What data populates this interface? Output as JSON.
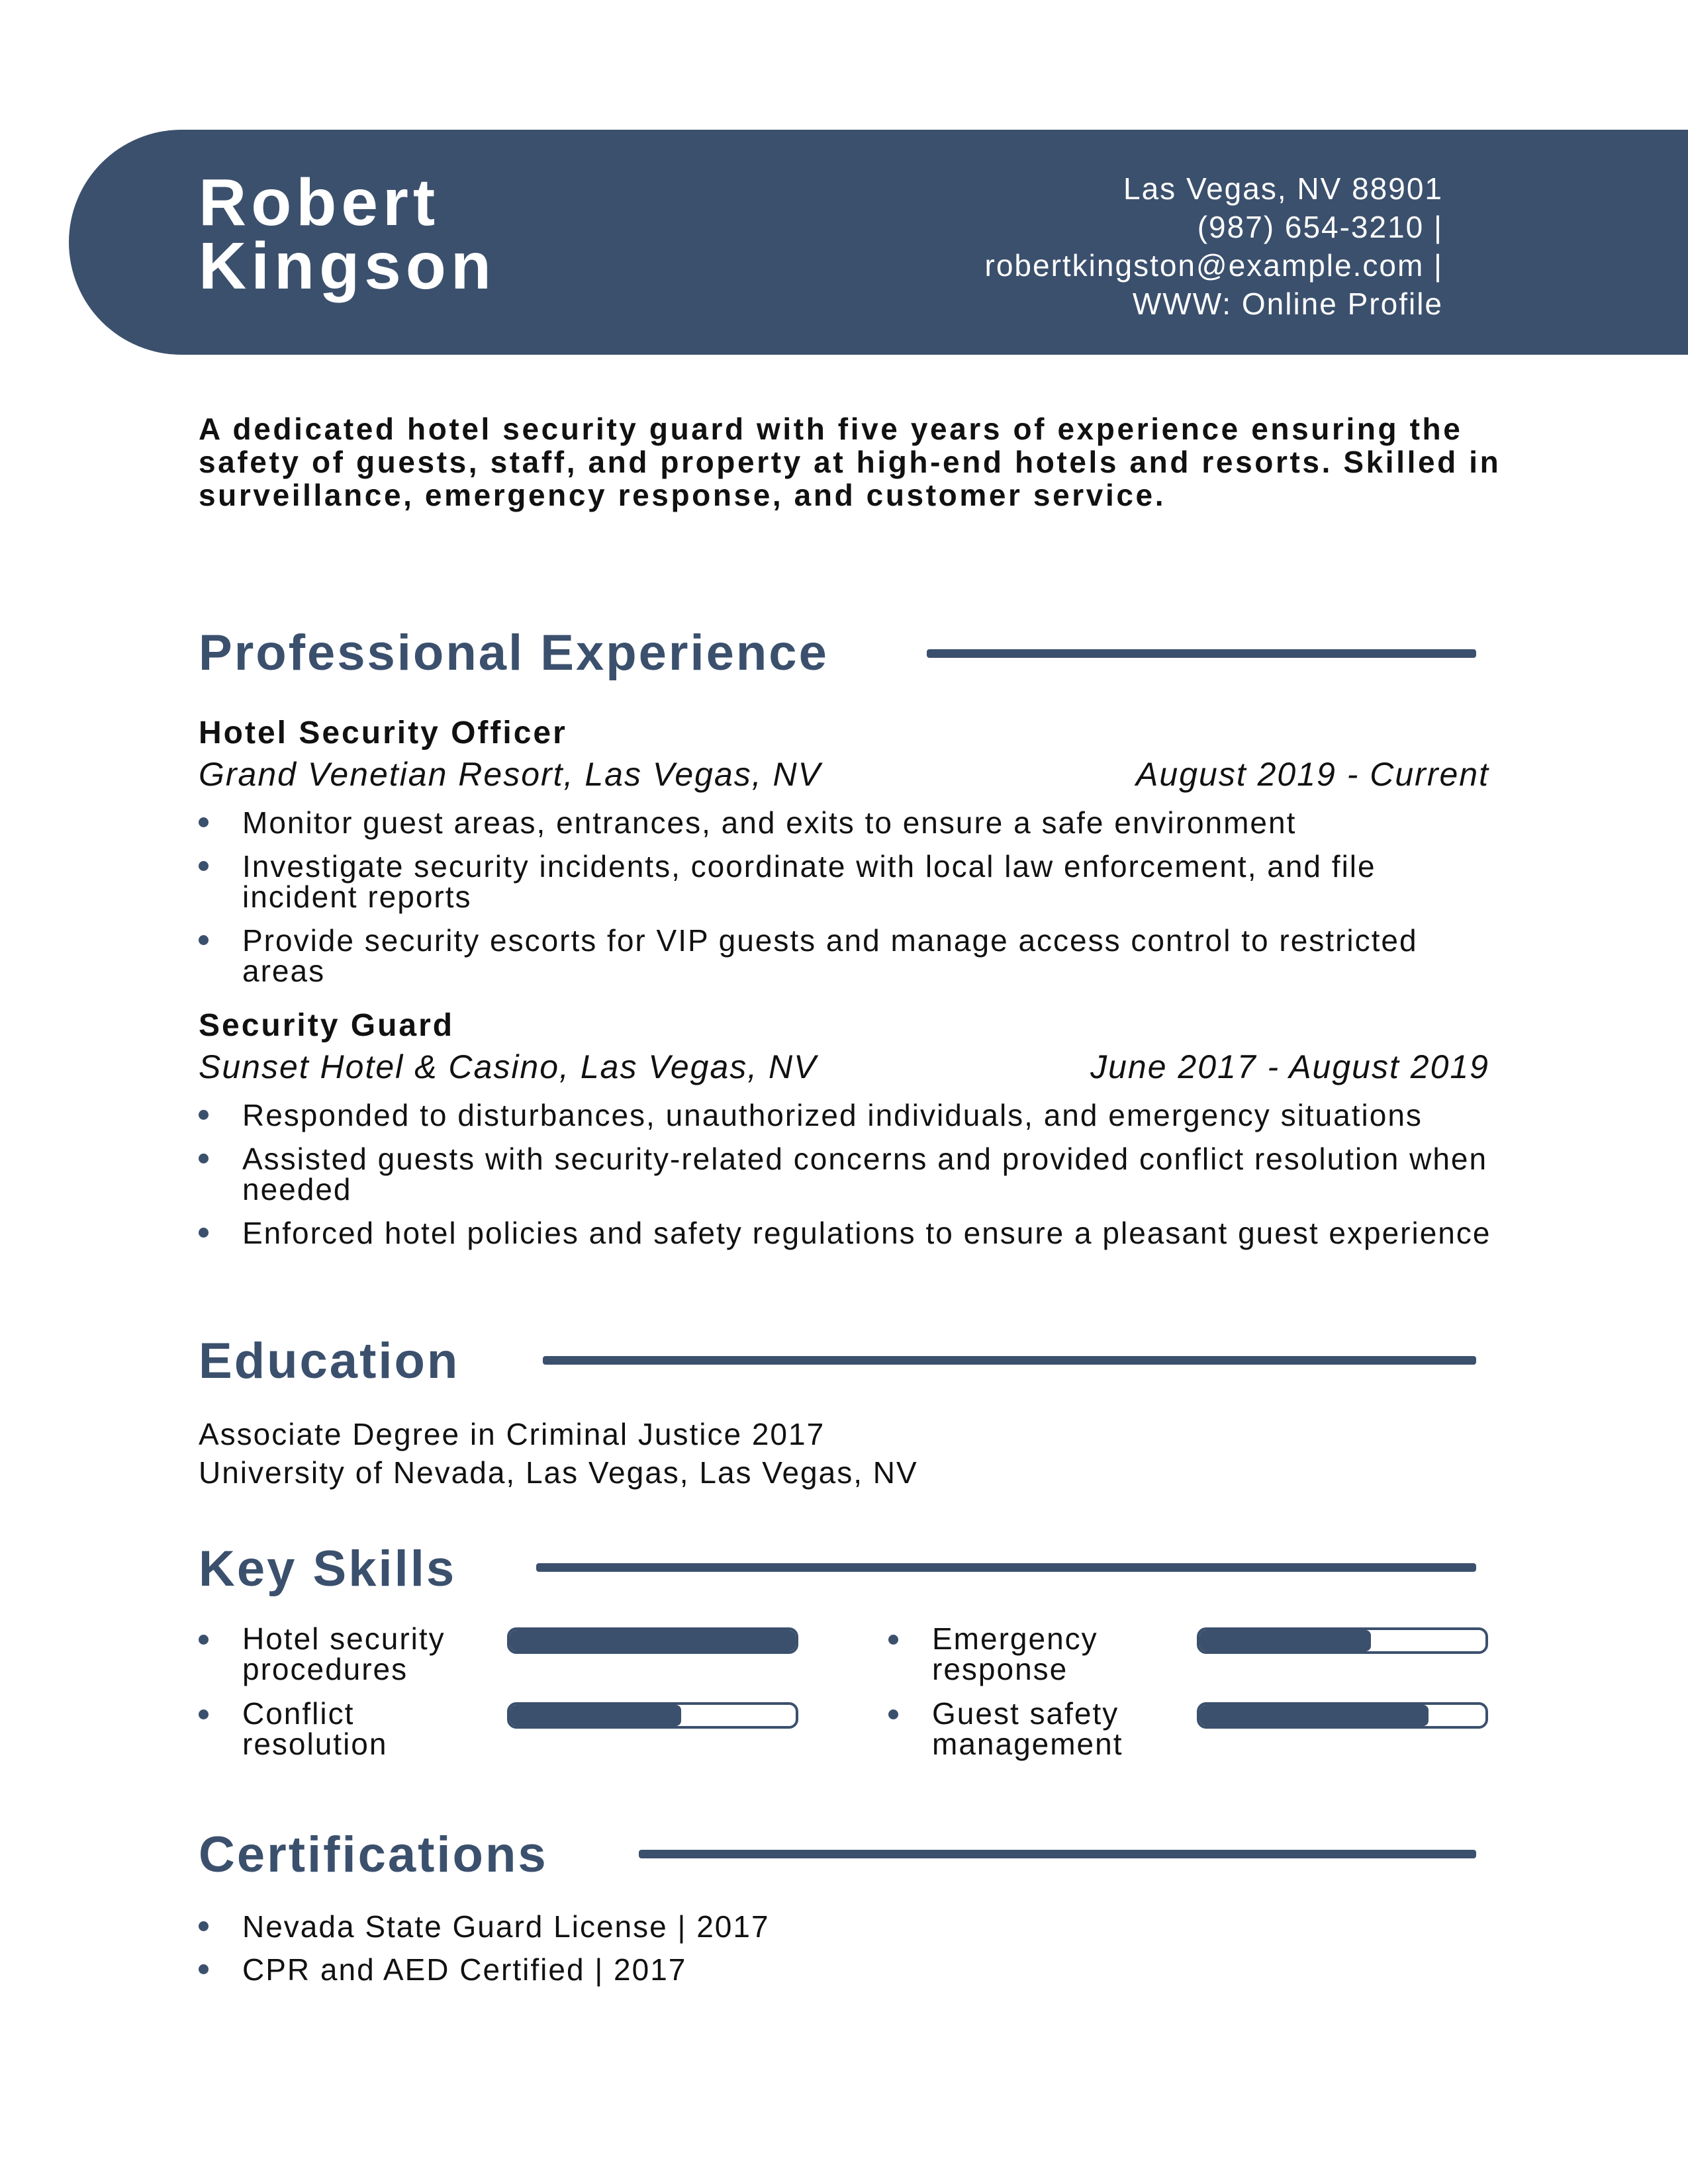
{
  "header": {
    "first_name": "Robert",
    "last_name": "Kingson",
    "contact": {
      "address": "Las Vegas, NV 88901",
      "phone": "(987) 654-3210 |",
      "email": "robertkingston@example.com |",
      "website": "WWW: Online Profile"
    }
  },
  "summary": "A dedicated hotel security guard with five years of experience ensuring the safety of guests, staff, and property at high-end hotels and resorts. Skilled in surveillance, emergency response, and customer service.",
  "experience": {
    "title": "Professional Experience",
    "jobs": [
      {
        "title": "Hotel Security Officer",
        "company": "Grand Venetian Resort, Las Vegas, NV",
        "dates": "August 2019 - Current",
        "bullets": [
          "Monitor guest areas, entrances, and exits to ensure a safe environment",
          "Investigate security incidents, coordinate with local law enforcement, and file incident reports",
          "Provide security escorts for VIP guests and manage access control to restricted areas"
        ]
      },
      {
        "title": "Security Guard",
        "company": "Sunset Hotel & Casino, Las Vegas, NV",
        "dates": "June 2017 - August 2019",
        "bullets": [
          "Responded to disturbances, unauthorized individuals, and emergency situations",
          "Assisted guests with security-related concerns and provided conflict resolution when needed",
          "Enforced hotel policies and safety regulations to ensure a pleasant guest experience"
        ]
      }
    ]
  },
  "education": {
    "title": "Education",
    "degree": "Associate Degree in Criminal Justice 2017",
    "school": "University of Nevada, Las Vegas, Las Vegas, NV"
  },
  "skills": {
    "title": "Key Skills",
    "items": [
      {
        "label": "Hotel security procedures",
        "level": 1.0
      },
      {
        "label": "Emergency response",
        "level": 0.6
      },
      {
        "label": "Conflict resolution",
        "level": 0.6
      },
      {
        "label": "Guest safety management",
        "level": 0.8
      }
    ]
  },
  "certifications": {
    "title": "Certifications",
    "items": [
      "Nevada State Guard License | 2017",
      "CPR and AED Certified | 2017"
    ]
  },
  "colors": {
    "accent": "#3b506d",
    "text": "#111111",
    "background": "#ffffff"
  }
}
